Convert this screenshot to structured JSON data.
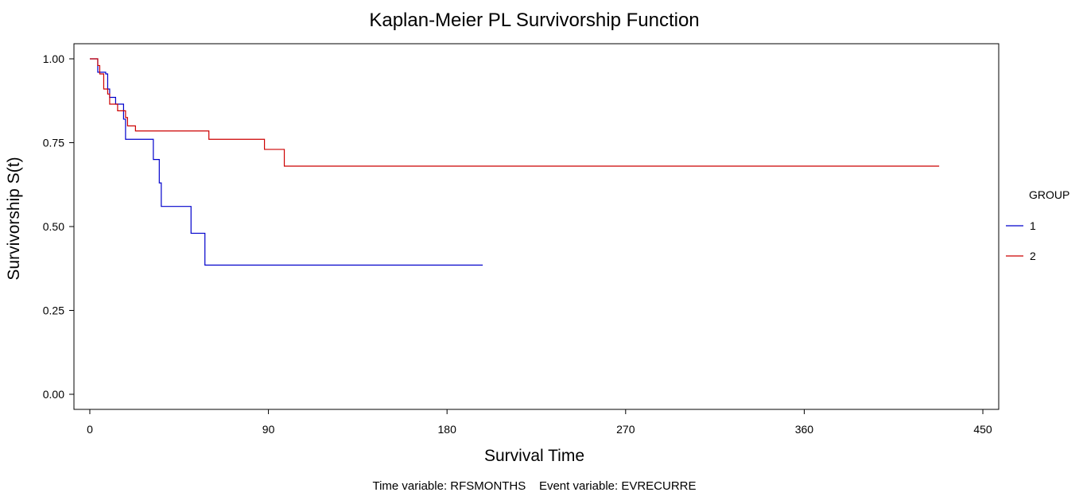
{
  "chart_data": {
    "type": "line",
    "step": true,
    "title": "Kaplan-Meier PL Survivorship Function",
    "xlabel": "Survival Time",
    "ylabel": "Survivorship S(t)",
    "xlim": [
      -8,
      458
    ],
    "ylim": [
      -0.045,
      1.045
    ],
    "x_ticks": [
      0,
      90,
      180,
      270,
      360,
      450
    ],
    "x_tick_labels": [
      "0",
      "90",
      "180",
      "270",
      "360",
      "450"
    ],
    "y_ticks": [
      0,
      0.25,
      0.5,
      0.75,
      1.0
    ],
    "y_tick_labels": [
      "0.00",
      "0.25",
      "0.50",
      "0.75",
      "1.00"
    ],
    "grid": false,
    "legend": {
      "title": "GROUP",
      "placement": "right"
    },
    "series": [
      {
        "name": "1",
        "color": "#0000cc",
        "points": [
          [
            0,
            1.0
          ],
          [
            4,
            0.96
          ],
          [
            8,
            0.955
          ],
          [
            9,
            0.91
          ],
          [
            10,
            0.885
          ],
          [
            13,
            0.865
          ],
          [
            17,
            0.82
          ],
          [
            18,
            0.76
          ],
          [
            32,
            0.7
          ],
          [
            35,
            0.63
          ],
          [
            36,
            0.56
          ],
          [
            51,
            0.48
          ],
          [
            58,
            0.385
          ],
          [
            198,
            0.385
          ]
        ]
      },
      {
        "name": "2",
        "color": "#cc0000",
        "points": [
          [
            0,
            1.0
          ],
          [
            4,
            0.98
          ],
          [
            5,
            0.955
          ],
          [
            7,
            0.91
          ],
          [
            9,
            0.895
          ],
          [
            10,
            0.865
          ],
          [
            14,
            0.845
          ],
          [
            18,
            0.825
          ],
          [
            19,
            0.8
          ],
          [
            23,
            0.785
          ],
          [
            60,
            0.76
          ],
          [
            88,
            0.73
          ],
          [
            98,
            0.68
          ],
          [
            428,
            0.68
          ]
        ]
      }
    ]
  },
  "footnote": "Time variable: RFSMONTHS    Event variable: EVRECURRE"
}
